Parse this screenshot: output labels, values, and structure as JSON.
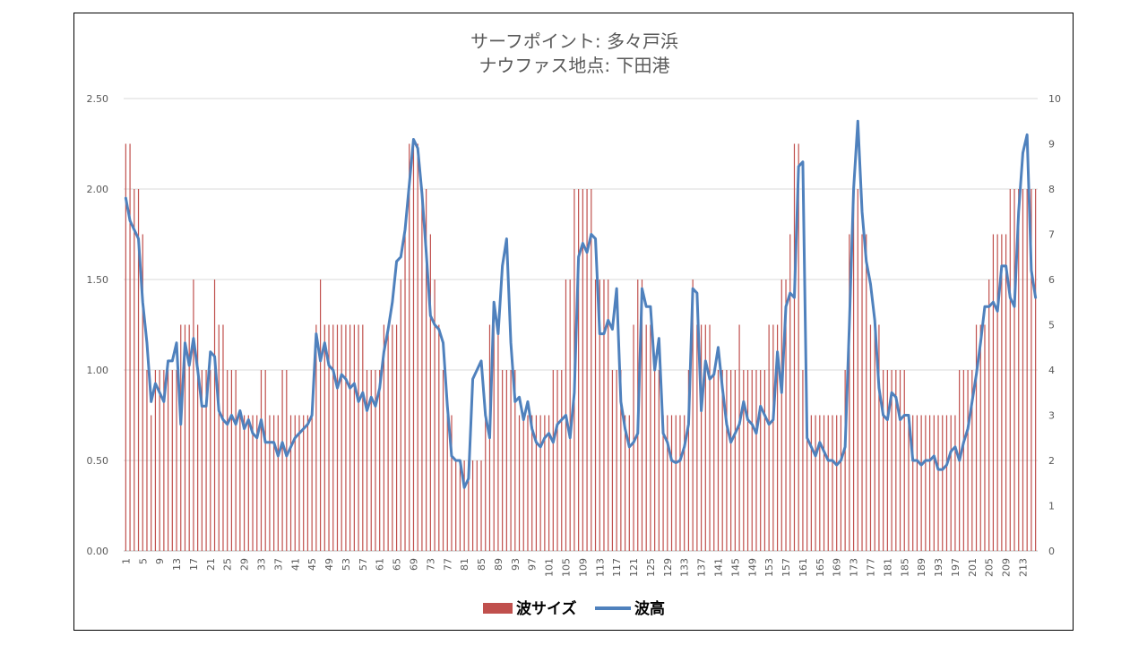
{
  "chart_data": {
    "type": "bar+line",
    "title_lines": [
      "サーフポイント: 多々戸浜",
      "ナウファス地点: 下田港"
    ],
    "left_axis": {
      "ylim": [
        0,
        2.5
      ],
      "ticks": [
        "0.00",
        "0.50",
        "1.00",
        "1.50",
        "2.00",
        "2.50"
      ]
    },
    "right_axis": {
      "ylim": [
        0,
        10
      ],
      "ticks": [
        "0",
        "1",
        "2",
        "3",
        "4",
        "5",
        "6",
        "7",
        "8",
        "9",
        "10"
      ]
    },
    "x_start": 1,
    "x_count": 216,
    "x_tick_step": 4,
    "grid": true,
    "legend_position": "bottom",
    "series": [
      {
        "name": "波サイズ",
        "type": "bar",
        "axis": "left",
        "color": "#c0504d",
        "breakpoints": [
          [
            1,
            2.25
          ],
          [
            3,
            2.0
          ],
          [
            5,
            1.75
          ],
          [
            6,
            1.0
          ],
          [
            7,
            0.75
          ],
          [
            8,
            1.0
          ],
          [
            12,
            1.0
          ],
          [
            14,
            1.25
          ],
          [
            17,
            1.5
          ],
          [
            18,
            1.25
          ],
          [
            19,
            1.0
          ],
          [
            22,
            1.5
          ],
          [
            23,
            1.25
          ],
          [
            25,
            1.0
          ],
          [
            28,
            0.75
          ],
          [
            33,
            1.0
          ],
          [
            35,
            0.75
          ],
          [
            38,
            1.0
          ],
          [
            40,
            0.75
          ],
          [
            46,
            1.25
          ],
          [
            47,
            1.5
          ],
          [
            48,
            1.25
          ],
          [
            58,
            1.0
          ],
          [
            62,
            1.25
          ],
          [
            66,
            1.5
          ],
          [
            67,
            1.75
          ],
          [
            68,
            2.25
          ],
          [
            71,
            2.0
          ],
          [
            73,
            1.75
          ],
          [
            74,
            1.5
          ],
          [
            75,
            1.25
          ],
          [
            76,
            1.0
          ],
          [
            77,
            0.75
          ],
          [
            79,
            0.5
          ],
          [
            86,
            0.75
          ],
          [
            87,
            1.25
          ],
          [
            90,
            1.0
          ],
          [
            94,
            0.75
          ],
          [
            102,
            1.0
          ],
          [
            105,
            1.5
          ],
          [
            107,
            2.0
          ],
          [
            112,
            1.5
          ],
          [
            116,
            1.0
          ],
          [
            119,
            0.75
          ],
          [
            121,
            1.25
          ],
          [
            122,
            1.5
          ],
          [
            124,
            1.25
          ],
          [
            126,
            1.0
          ],
          [
            128,
            0.75
          ],
          [
            134,
            1.0
          ],
          [
            135,
            1.5
          ],
          [
            136,
            1.25
          ],
          [
            140,
            1.0
          ],
          [
            146,
            1.25
          ],
          [
            147,
            1.0
          ],
          [
            153,
            1.25
          ],
          [
            155,
            1.25
          ],
          [
            156,
            1.5
          ],
          [
            158,
            1.75
          ],
          [
            159,
            2.25
          ],
          [
            161,
            1.0
          ],
          [
            162,
            0.75
          ],
          [
            171,
            1.0
          ],
          [
            172,
            1.75
          ],
          [
            173,
            2.0
          ],
          [
            175,
            1.75
          ],
          [
            177,
            1.25
          ],
          [
            180,
            1.0
          ],
          [
            186,
            0.75
          ],
          [
            198,
            1.0
          ],
          [
            202,
            1.25
          ],
          [
            205,
            1.5
          ],
          [
            206,
            1.75
          ],
          [
            210,
            2.0
          ],
          [
            216,
            2.0
          ]
        ]
      },
      {
        "name": "波高",
        "type": "line",
        "axis": "right",
        "color": "#4f81bd",
        "points": [
          [
            1,
            7.8
          ],
          [
            2,
            7.3
          ],
          [
            3,
            7.1
          ],
          [
            4,
            6.9
          ],
          [
            5,
            5.5
          ],
          [
            6,
            4.6
          ],
          [
            7,
            3.3
          ],
          [
            8,
            3.7
          ],
          [
            9,
            3.5
          ],
          [
            10,
            3.3
          ],
          [
            11,
            4.2
          ],
          [
            12,
            4.2
          ],
          [
            13,
            4.6
          ],
          [
            14,
            2.8
          ],
          [
            15,
            4.6
          ],
          [
            16,
            4.1
          ],
          [
            17,
            4.7
          ],
          [
            18,
            4.0
          ],
          [
            19,
            3.2
          ],
          [
            20,
            3.2
          ],
          [
            21,
            4.4
          ],
          [
            22,
            4.3
          ],
          [
            23,
            3.1
          ],
          [
            24,
            2.9
          ],
          [
            25,
            2.8
          ],
          [
            26,
            3.0
          ],
          [
            27,
            2.8
          ],
          [
            28,
            3.1
          ],
          [
            29,
            2.7
          ],
          [
            30,
            2.9
          ],
          [
            31,
            2.6
          ],
          [
            32,
            2.5
          ],
          [
            33,
            2.9
          ],
          [
            34,
            2.4
          ],
          [
            35,
            2.4
          ],
          [
            36,
            2.4
          ],
          [
            37,
            2.1
          ],
          [
            38,
            2.4
          ],
          [
            39,
            2.1
          ],
          [
            40,
            2.3
          ],
          [
            41,
            2.5
          ],
          [
            42,
            2.6
          ],
          [
            43,
            2.7
          ],
          [
            44,
            2.8
          ],
          [
            45,
            3.0
          ],
          [
            46,
            4.8
          ],
          [
            47,
            4.2
          ],
          [
            48,
            4.6
          ],
          [
            49,
            4.1
          ],
          [
            50,
            4.0
          ],
          [
            51,
            3.6
          ],
          [
            52,
            3.9
          ],
          [
            53,
            3.8
          ],
          [
            54,
            3.6
          ],
          [
            55,
            3.7
          ],
          [
            56,
            3.3
          ],
          [
            57,
            3.5
          ],
          [
            58,
            3.1
          ],
          [
            59,
            3.4
          ],
          [
            60,
            3.2
          ],
          [
            61,
            3.6
          ],
          [
            62,
            4.4
          ],
          [
            63,
            4.9
          ],
          [
            64,
            5.5
          ],
          [
            65,
            6.4
          ],
          [
            66,
            6.5
          ],
          [
            67,
            7.1
          ],
          [
            68,
            8.1
          ],
          [
            69,
            9.1
          ],
          [
            70,
            8.9
          ],
          [
            71,
            7.9
          ],
          [
            72,
            6.6
          ],
          [
            73,
            5.2
          ],
          [
            74,
            5.0
          ],
          [
            75,
            4.9
          ],
          [
            76,
            4.6
          ],
          [
            77,
            3.2
          ],
          [
            78,
            2.1
          ],
          [
            79,
            2.0
          ],
          [
            80,
            2.0
          ],
          [
            81,
            1.4
          ],
          [
            82,
            1.6
          ],
          [
            83,
            3.8
          ],
          [
            84,
            4.0
          ],
          [
            85,
            4.2
          ],
          [
            86,
            3.0
          ],
          [
            87,
            2.5
          ],
          [
            88,
            5.5
          ],
          [
            89,
            4.8
          ],
          [
            90,
            6.3
          ],
          [
            91,
            6.9
          ],
          [
            92,
            4.6
          ],
          [
            93,
            3.3
          ],
          [
            94,
            3.4
          ],
          [
            95,
            2.9
          ],
          [
            96,
            3.3
          ],
          [
            97,
            2.7
          ],
          [
            98,
            2.4
          ],
          [
            99,
            2.3
          ],
          [
            100,
            2.5
          ],
          [
            101,
            2.6
          ],
          [
            102,
            2.4
          ],
          [
            103,
            2.8
          ],
          [
            104,
            2.9
          ],
          [
            105,
            3.0
          ],
          [
            106,
            2.5
          ],
          [
            107,
            3.5
          ],
          [
            108,
            6.5
          ],
          [
            109,
            6.8
          ],
          [
            110,
            6.6
          ],
          [
            111,
            7.0
          ],
          [
            112,
            6.9
          ],
          [
            113,
            4.8
          ],
          [
            114,
            4.8
          ],
          [
            115,
            5.1
          ],
          [
            116,
            4.9
          ],
          [
            117,
            5.8
          ],
          [
            118,
            3.3
          ],
          [
            119,
            2.7
          ],
          [
            120,
            2.3
          ],
          [
            121,
            2.4
          ],
          [
            122,
            2.6
          ],
          [
            123,
            5.8
          ],
          [
            124,
            5.4
          ],
          [
            125,
            5.4
          ],
          [
            126,
            4.0
          ],
          [
            127,
            4.7
          ],
          [
            128,
            2.6
          ],
          [
            129,
            2.4
          ],
          [
            130,
            2.0
          ],
          [
            131,
            1.95
          ],
          [
            132,
            2.0
          ],
          [
            133,
            2.3
          ],
          [
            134,
            2.8
          ],
          [
            135,
            5.8
          ],
          [
            136,
            5.7
          ],
          [
            137,
            3.1
          ],
          [
            138,
            4.2
          ],
          [
            139,
            3.8
          ],
          [
            140,
            3.9
          ],
          [
            141,
            4.5
          ],
          [
            142,
            3.6
          ],
          [
            143,
            2.8
          ],
          [
            144,
            2.4
          ],
          [
            145,
            2.6
          ],
          [
            146,
            2.8
          ],
          [
            147,
            3.3
          ],
          [
            148,
            2.9
          ],
          [
            149,
            2.8
          ],
          [
            150,
            2.6
          ],
          [
            151,
            3.2
          ],
          [
            152,
            3.0
          ],
          [
            153,
            2.8
          ],
          [
            154,
            2.9
          ],
          [
            155,
            4.4
          ],
          [
            156,
            3.5
          ],
          [
            157,
            5.4
          ],
          [
            158,
            5.7
          ],
          [
            159,
            5.6
          ],
          [
            160,
            8.5
          ],
          [
            161,
            8.6
          ],
          [
            162,
            2.5
          ],
          [
            163,
            2.3
          ],
          [
            164,
            2.1
          ],
          [
            165,
            2.4
          ],
          [
            166,
            2.2
          ],
          [
            167,
            2.0
          ],
          [
            168,
            2.0
          ],
          [
            169,
            1.9
          ],
          [
            170,
            2.0
          ],
          [
            171,
            2.3
          ],
          [
            172,
            5.0
          ],
          [
            173,
            8.0
          ],
          [
            174,
            9.5
          ],
          [
            175,
            7.5
          ],
          [
            176,
            6.4
          ],
          [
            177,
            5.9
          ],
          [
            178,
            5.1
          ],
          [
            179,
            3.6
          ],
          [
            180,
            3.0
          ],
          [
            181,
            2.9
          ],
          [
            182,
            3.5
          ],
          [
            183,
            3.4
          ],
          [
            184,
            2.9
          ],
          [
            185,
            3.0
          ],
          [
            186,
            3.0
          ],
          [
            187,
            2.0
          ],
          [
            188,
            2.0
          ],
          [
            189,
            1.9
          ],
          [
            190,
            2.0
          ],
          [
            191,
            2.0
          ],
          [
            192,
            2.1
          ],
          [
            193,
            1.8
          ],
          [
            194,
            1.8
          ],
          [
            195,
            1.9
          ],
          [
            196,
            2.2
          ],
          [
            197,
            2.3
          ],
          [
            198,
            2.0
          ],
          [
            199,
            2.4
          ],
          [
            200,
            2.7
          ],
          [
            201,
            3.3
          ],
          [
            202,
            3.9
          ],
          [
            203,
            4.6
          ],
          [
            204,
            5.4
          ],
          [
            205,
            5.4
          ],
          [
            206,
            5.5
          ],
          [
            207,
            5.3
          ],
          [
            208,
            6.3
          ],
          [
            209,
            6.3
          ],
          [
            210,
            5.6
          ],
          [
            211,
            5.4
          ],
          [
            212,
            7.5
          ],
          [
            213,
            8.8
          ],
          [
            214,
            9.2
          ],
          [
            215,
            6.2
          ],
          [
            216,
            5.6
          ]
        ]
      }
    ]
  }
}
